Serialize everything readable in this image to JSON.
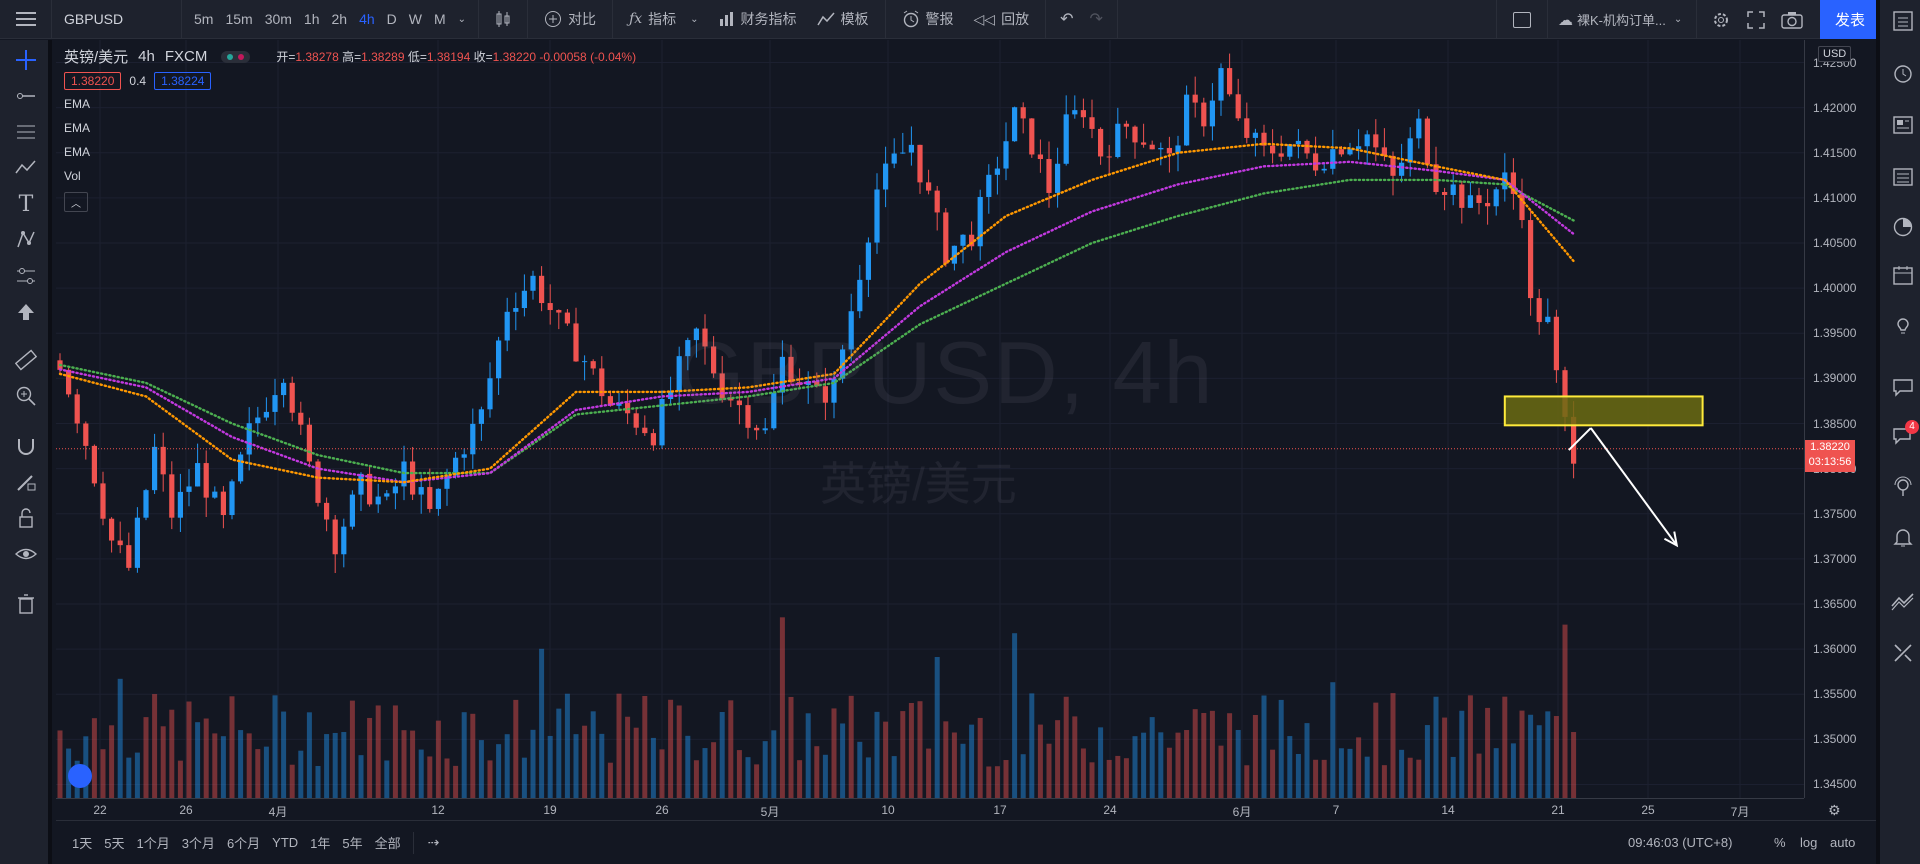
{
  "topbar": {
    "symbol": "GBPUSD",
    "timeframes": [
      "5m",
      "15m",
      "30m",
      "1h",
      "2h",
      "4h",
      "D",
      "W",
      "M"
    ],
    "active_timeframe": "4h",
    "compare_label": "对比",
    "indicators_label": "指标",
    "financials_label": "财务指标",
    "templates_label": "模板",
    "alert_label": "警报",
    "replay_label": "回放",
    "layout_name": "裸K-机构订单...",
    "publish_label": "发表"
  },
  "legend": {
    "title": "英镑/美元",
    "interval": "4h",
    "exchange": "FXCM",
    "open_label": "开=",
    "open": "1.38278",
    "high_label": "高=",
    "high": "1.38289",
    "low_label": "低=",
    "low": "1.38194",
    "close_label": "收=",
    "close": "1.38220",
    "change": "-0.00058 (-0.04%)",
    "bid": "1.38220",
    "spread": "0.4",
    "ask": "1.38224",
    "indicators": [
      "EMA",
      "EMA",
      "EMA",
      "Vol"
    ]
  },
  "watermark": {
    "line1": "GBPUSD, 4h",
    "line2": "英镑/美元"
  },
  "price_scale": {
    "currency": "USD",
    "labels": [
      "1.42500",
      "1.42000",
      "1.41500",
      "1.41000",
      "1.40500",
      "1.40000",
      "1.39500",
      "1.39000",
      "1.38500",
      "1.38000",
      "1.37500",
      "1.37000",
      "1.36500",
      "1.36000",
      "1.35500",
      "1.35000",
      "1.34500"
    ],
    "current_price": "1.38220",
    "countdown": "03:13:56"
  },
  "time_scale": {
    "labels": [
      "22",
      "26",
      "4月",
      "12",
      "19",
      "26",
      "5月",
      "10",
      "17",
      "24",
      "6月",
      "7",
      "14",
      "21",
      "25",
      "7月"
    ]
  },
  "bottombar": {
    "ranges": [
      "1天",
      "5天",
      "1个月",
      "3个月",
      "6个月",
      "YTD",
      "1年",
      "5年",
      "全部"
    ],
    "clock": "09:46:03 (UTC+8)",
    "percent": "%",
    "log": "log",
    "auto": "auto"
  },
  "rightbar": {
    "notification_count": "4"
  },
  "colors": {
    "up": "#2196f3",
    "down": "#ef5350",
    "ema_fast": "#ff9800",
    "ema_mid": "#c239e0",
    "ema_slow": "#4caf50",
    "zone_fill": "#6b6b12",
    "zone_border": "#ffeb3b",
    "accent": "#2962ff"
  },
  "chart_data": {
    "type": "candlestick",
    "y_range": [
      1.3435,
      1.4275
    ],
    "price_path": [
      [
        0,
        1.392
      ],
      [
        3,
        1.383
      ],
      [
        6,
        1.372
      ],
      [
        8,
        1.369
      ],
      [
        11,
        1.382
      ],
      [
        13,
        1.375
      ],
      [
        16,
        1.38
      ],
      [
        19,
        1.374
      ],
      [
        22,
        1.384
      ],
      [
        26,
        1.391
      ],
      [
        29,
        1.38
      ],
      [
        32,
        1.372
      ],
      [
        35,
        1.378
      ],
      [
        38,
        1.376
      ],
      [
        40,
        1.38
      ],
      [
        43,
        1.375
      ],
      [
        46,
        1.381
      ],
      [
        49,
        1.386
      ],
      [
        52,
        1.398
      ],
      [
        55,
        1.401
      ],
      [
        58,
        1.396
      ],
      [
        61,
        1.392
      ],
      [
        64,
        1.387
      ],
      [
        66,
        1.386
      ],
      [
        69,
        1.384
      ],
      [
        72,
        1.391
      ],
      [
        74,
        1.395
      ],
      [
        77,
        1.389
      ],
      [
        80,
        1.386
      ],
      [
        82,
        1.384
      ],
      [
        84,
        1.392
      ],
      [
        86,
        1.39
      ],
      [
        88,
        1.388
      ],
      [
        90,
        1.389
      ],
      [
        93,
        1.402
      ],
      [
        95,
        1.411
      ],
      [
        97,
        1.414
      ],
      [
        99,
        1.416
      ],
      [
        101,
        1.41
      ],
      [
        103,
        1.404
      ],
      [
        106,
        1.406
      ],
      [
        109,
        1.414
      ],
      [
        111,
        1.419
      ],
      [
        113,
        1.416
      ],
      [
        115,
        1.411
      ],
      [
        117,
        1.418
      ],
      [
        119,
        1.42
      ],
      [
        121,
        1.415
      ],
      [
        124,
        1.418
      ],
      [
        127,
        1.416
      ],
      [
        129,
        1.414
      ],
      [
        131,
        1.42
      ],
      [
        133,
        1.419
      ],
      [
        135,
        1.424
      ],
      [
        137,
        1.418
      ],
      [
        140,
        1.415
      ],
      [
        143,
        1.416
      ],
      [
        146,
        1.414
      ],
      [
        149,
        1.416
      ],
      [
        152,
        1.417
      ],
      [
        155,
        1.412
      ],
      [
        158,
        1.418
      ],
      [
        160,
        1.412
      ],
      [
        162,
        1.411
      ],
      [
        164,
        1.409
      ],
      [
        166,
        1.41
      ],
      [
        168,
        1.412
      ],
      [
        170,
        1.409
      ],
      [
        171,
        1.398
      ],
      [
        173,
        1.396
      ],
      [
        174,
        1.39
      ],
      [
        175,
        1.385
      ],
      [
        176,
        1.382
      ]
    ],
    "ema_fast_path": [
      [
        0,
        1.3905
      ],
      [
        10,
        1.388
      ],
      [
        20,
        1.381
      ],
      [
        30,
        1.379
      ],
      [
        40,
        1.3785
      ],
      [
        50,
        1.38
      ],
      [
        60,
        1.3885
      ],
      [
        70,
        1.3885
      ],
      [
        80,
        1.389
      ],
      [
        90,
        1.3905
      ],
      [
        100,
        1.4005
      ],
      [
        110,
        1.408
      ],
      [
        120,
        1.412
      ],
      [
        130,
        1.415
      ],
      [
        140,
        1.416
      ],
      [
        150,
        1.4155
      ],
      [
        160,
        1.4135
      ],
      [
        168,
        1.412
      ],
      [
        176,
        1.403
      ]
    ],
    "ema_mid_path": [
      [
        0,
        1.391
      ],
      [
        10,
        1.389
      ],
      [
        20,
        1.3835
      ],
      [
        30,
        1.38
      ],
      [
        40,
        1.3785
      ],
      [
        50,
        1.3795
      ],
      [
        60,
        1.3865
      ],
      [
        70,
        1.388
      ],
      [
        80,
        1.3885
      ],
      [
        90,
        1.39
      ],
      [
        100,
        1.398
      ],
      [
        110,
        1.404
      ],
      [
        120,
        1.4085
      ],
      [
        130,
        1.4115
      ],
      [
        140,
        1.4135
      ],
      [
        150,
        1.414
      ],
      [
        160,
        1.413
      ],
      [
        168,
        1.412
      ],
      [
        176,
        1.406
      ]
    ],
    "ema_slow_path": [
      [
        0,
        1.3915
      ],
      [
        10,
        1.3895
      ],
      [
        20,
        1.385
      ],
      [
        30,
        1.3815
      ],
      [
        40,
        1.3795
      ],
      [
        50,
        1.3795
      ],
      [
        60,
        1.386
      ],
      [
        70,
        1.387
      ],
      [
        80,
        1.388
      ],
      [
        90,
        1.3895
      ],
      [
        100,
        1.396
      ],
      [
        110,
        1.4005
      ],
      [
        120,
        1.405
      ],
      [
        130,
        1.408
      ],
      [
        140,
        1.4105
      ],
      [
        150,
        1.412
      ],
      [
        160,
        1.412
      ],
      [
        168,
        1.4115
      ],
      [
        176,
        1.4075
      ]
    ],
    "zone": {
      "from_bar": 168,
      "to_bar": 191,
      "top": 1.388,
      "bottom": 1.3848
    },
    "arrow": {
      "from_bar": 178,
      "from_price": 1.3845,
      "to_bar": 188,
      "to_price": 1.3715
    }
  }
}
